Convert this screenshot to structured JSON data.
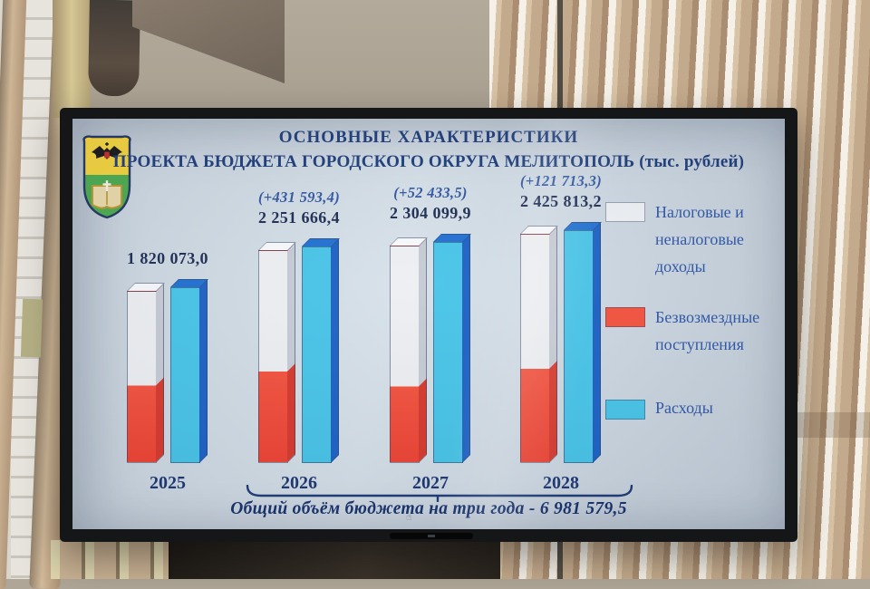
{
  "slide": {
    "title_line1": "ОСНОВНЫЕ ХАРАКТЕРИСТИКИ",
    "title_line2": "ПРОЕКТА БЮДЖЕТА ГОРОДСКОГО ОКРУГА МЕЛИТОПОЛЬ (тыс. рублей)",
    "footer_text": "Общий объём бюджета на три года - 6 981 579,5",
    "coat_of_arms": "герб городского округа Мелитополь",
    "background_color": "#cfdae4",
    "title_color": "#1d3c79"
  },
  "legend": {
    "items": [
      {
        "label": "Налоговые и неналоговые доходы",
        "color": "#eef1f4"
      },
      {
        "label": "Безвозмездные поступления",
        "color": "#f4503c"
      },
      {
        "label": "Расходы",
        "color": "#46c4e8"
      }
    ]
  },
  "chart_data": {
    "type": "bar",
    "title": "ОСНОВНЫЕ ХАРАКТЕРИСТИКИ ПРОЕКТА БЮДЖЕТА ГОРОДСКОГО ОКРУГА МЕЛИТОПОЛЬ",
    "unit": "тыс. рублей",
    "categories": [
      "2025",
      "2026",
      "2027",
      "2028"
    ],
    "totals": [
      1820073.0,
      2251666.4,
      2304099.9,
      2425813.2
    ],
    "total_labels": [
      "1 820 073,0",
      "2 251 666,4",
      "2 304 099,9",
      "2 425 813,2"
    ],
    "increments": [
      null,
      431593.4,
      52433.5,
      121713.3
    ],
    "increment_labels": [
      "",
      "(+431 593,4)",
      "(+52 433,5)",
      "(+121 713,3)"
    ],
    "series": [
      {
        "name": "Налоговые и неналоговые доходы",
        "role": "income-upper-segment",
        "color": "#edeff2",
        "est_fraction_of_total": [
          0.55,
          0.57,
          0.65,
          0.59
        ]
      },
      {
        "name": "Безвозмездные поступления",
        "role": "income-lower-segment",
        "color": "#f4503c",
        "est_fraction_of_total": [
          0.45,
          0.43,
          0.35,
          0.41
        ]
      },
      {
        "name": "Расходы",
        "role": "expenses-bar",
        "color": "#46c4e8",
        "values": [
          1820073.0,
          2251666.4,
          2304099.9,
          2425813.2
        ]
      }
    ],
    "bracket_years": [
      "2026",
      "2027",
      "2028"
    ],
    "footer_label": "Общий объём бюджета на три года",
    "footer_total": 6981579.5,
    "legend_position": "right",
    "ylim": [
      0,
      2500000
    ],
    "grid": false
  }
}
